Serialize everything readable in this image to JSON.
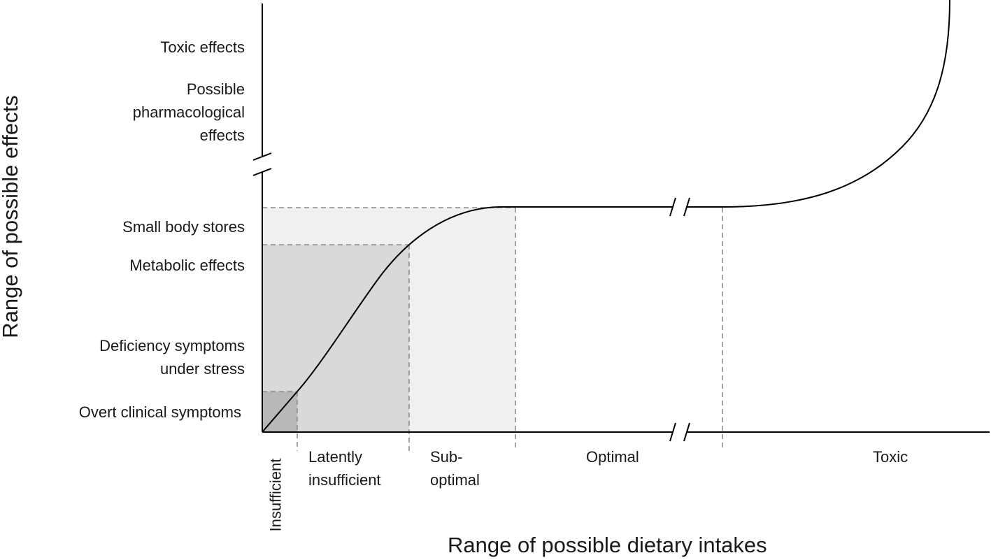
{
  "axes": {
    "y_title": "Range of possible effects",
    "x_title": "Range of possible dietary intakes"
  },
  "effect_levels": {
    "toxic": "Toxic effects",
    "pharmacological": [
      "Possible",
      "pharmacological",
      "effects"
    ],
    "small_body_stores": "Small body stores",
    "metabolic": "Metabolic effects",
    "deficiency_stress": [
      "Deficiency symptoms",
      "under stress"
    ],
    "overt_clinical": "Overt clinical symptoms"
  },
  "intake_ranges": {
    "insufficient": "Insufficient",
    "latently_insufficient": [
      "Latently",
      "insufficient"
    ],
    "suboptimal": [
      "Sub-",
      "optimal"
    ],
    "optimal": "Optimal",
    "toxic": "Toxic"
  },
  "colors": {
    "region_dark": "#b8b8b8",
    "region_mid": "#d9d9d9",
    "region_light": "#f0f0f0",
    "line": "#000000",
    "dashed": "#8c8c8c"
  }
}
